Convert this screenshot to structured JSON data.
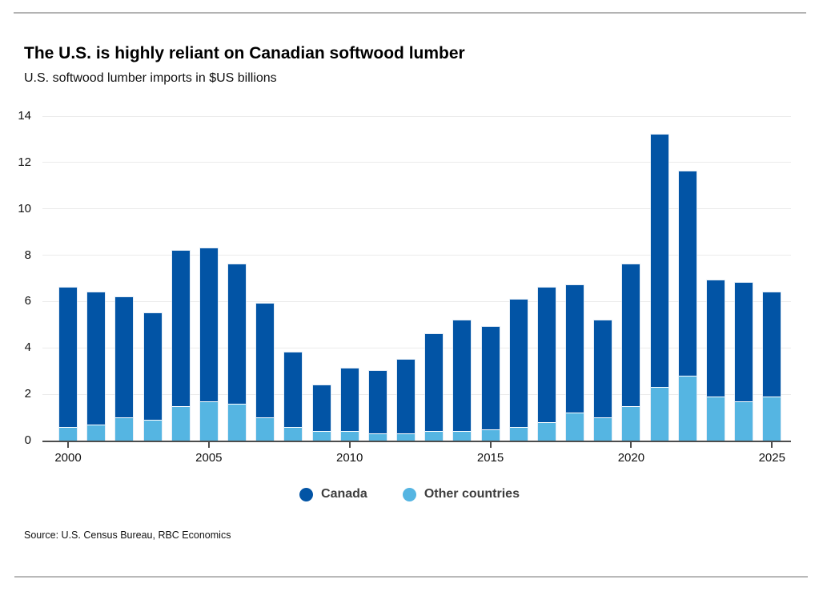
{
  "header": {
    "title": "The U.S. is highly reliant on Canadian softwood lumber",
    "subtitle": "U.S. softwood lumber imports in $US billions"
  },
  "footer": {
    "source": "Source: U.S. Census Bureau, RBC Economics"
  },
  "legend": {
    "items": [
      {
        "label": "Canada",
        "color": "#0254a5"
      },
      {
        "label": "Other countries",
        "color": "#55b5e2"
      }
    ]
  },
  "colors": {
    "canada": "#0254a5",
    "other_countries": "#55b5e2",
    "gridline": "#ebebeb",
    "axis": "#4d4d4d",
    "divider": "#b3b3b3"
  },
  "chart_data": {
    "type": "bar",
    "stacked": true,
    "title": "The U.S. is highly reliant on Canadian softwood lumber",
    "subtitle": "U.S. softwood lumber imports in $US billions",
    "categories": [
      2000,
      2001,
      2002,
      2003,
      2004,
      2005,
      2006,
      2007,
      2008,
      2009,
      2010,
      2011,
      2012,
      2013,
      2014,
      2015,
      2016,
      2017,
      2018,
      2019,
      2020,
      2021,
      2022,
      2023,
      2024,
      2025
    ],
    "series": [
      {
        "name": "Canada",
        "color": "#0254a5",
        "values": [
          6.0,
          5.7,
          5.2,
          4.6,
          6.7,
          6.6,
          6.0,
          4.9,
          3.2,
          2.0,
          2.7,
          2.7,
          3.2,
          4.2,
          4.8,
          4.4,
          5.5,
          5.8,
          5.5,
          4.2,
          6.1,
          10.9,
          8.8,
          5.0,
          5.1,
          4.5
        ]
      },
      {
        "name": "Other countries",
        "color": "#55b5e2",
        "values": [
          0.6,
          0.7,
          1.0,
          0.9,
          1.5,
          1.7,
          1.6,
          1.0,
          0.6,
          0.4,
          0.4,
          0.3,
          0.3,
          0.4,
          0.4,
          0.5,
          0.6,
          0.8,
          1.2,
          1.0,
          1.5,
          2.3,
          2.8,
          1.9,
          1.7,
          1.9
        ]
      }
    ],
    "totals": [
      6.6,
      6.4,
      6.2,
      5.5,
      8.2,
      8.3,
      7.6,
      5.9,
      3.8,
      2.4,
      3.1,
      3.0,
      3.5,
      4.6,
      5.2,
      4.9,
      6.1,
      6.6,
      6.7,
      5.2,
      7.6,
      13.2,
      11.6,
      6.9,
      6.8,
      6.4
    ],
    "xlabel": "",
    "ylabel": "",
    "ylim": [
      0,
      14
    ],
    "yticks": [
      0,
      2,
      4,
      6,
      8,
      10,
      12,
      14
    ],
    "xticks": [
      2000,
      2005,
      2010,
      2015,
      2020,
      2025
    ],
    "grid": "horizontal",
    "legend_position": "bottom",
    "stack_order": "other-countries-bottom, canada-top"
  }
}
